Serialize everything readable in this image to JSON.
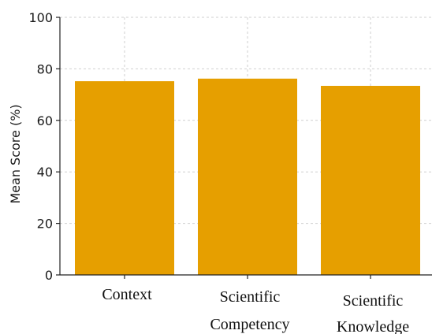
{
  "chart_data": {
    "type": "bar",
    "categories": [
      [
        "Context"
      ],
      [
        "Scientific",
        "Competency"
      ],
      [
        "Scientific",
        "Knowledge"
      ]
    ],
    "values": [
      75.2,
      76.2,
      73.4
    ],
    "ylabel": "Mean Score (%)",
    "ylim": [
      0,
      100
    ],
    "yticks": [
      0,
      20,
      40,
      60,
      80,
      100
    ],
    "grid": true,
    "bar_color": "#E69F00"
  }
}
